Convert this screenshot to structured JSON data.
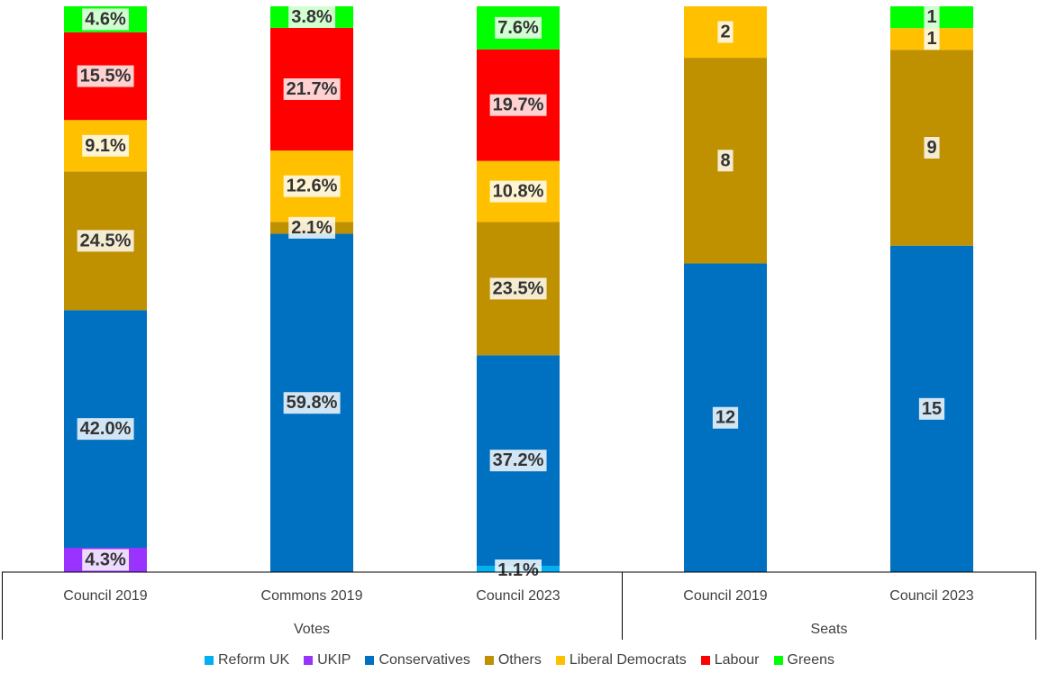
{
  "chart_data": {
    "type": "bar",
    "stacked": true,
    "normalized": true,
    "groups": [
      {
        "label": "Votes",
        "categories": [
          "Council 2019",
          "Commons 2019",
          "Council 2023"
        ]
      },
      {
        "label": "Seats",
        "categories": [
          "Council 2019",
          "Council 2023"
        ]
      }
    ],
    "categories": [
      "Council 2019",
      "Commons 2019",
      "Council 2023",
      "Council 2019",
      "Council 2023"
    ],
    "series": [
      {
        "name": "Reform UK",
        "color": "#00B0F0",
        "values": [
          0,
          0,
          1.1,
          0,
          0
        ],
        "labels": [
          "",
          "",
          "1.1%",
          "",
          ""
        ]
      },
      {
        "name": "UKIP",
        "color": "#9933FF",
        "values": [
          4.3,
          0,
          0,
          0,
          0
        ],
        "labels": [
          "4.3%",
          "",
          "",
          "",
          ""
        ]
      },
      {
        "name": "Conservatives",
        "color": "#0070C0",
        "values": [
          42.0,
          59.8,
          37.2,
          12,
          15
        ],
        "labels": [
          "42.0%",
          "59.8%",
          "37.2%",
          "12",
          "15"
        ]
      },
      {
        "name": "Others",
        "color": "#BF9000",
        "values": [
          24.5,
          2.1,
          23.5,
          8,
          9
        ],
        "labels": [
          "24.5%",
          "2.1%",
          "23.5%",
          "8",
          "9"
        ]
      },
      {
        "name": "Liberal Democrats",
        "color": "#FFC000",
        "values": [
          9.1,
          12.6,
          10.8,
          2,
          1
        ],
        "labels": [
          "9.1%",
          "12.6%",
          "10.8%",
          "2",
          "1"
        ]
      },
      {
        "name": "Labour",
        "color": "#FF0000",
        "values": [
          15.5,
          21.7,
          19.7,
          0,
          0
        ],
        "labels": [
          "15.5%",
          "21.7%",
          "19.7%",
          "",
          ""
        ]
      },
      {
        "name": "Greens",
        "color": "#00FF00",
        "values": [
          4.6,
          3.8,
          7.6,
          0,
          1
        ],
        "labels": [
          "4.6%",
          "3.8%",
          "7.6%",
          "",
          "1"
        ]
      }
    ],
    "legend_position": "bottom",
    "title": "",
    "xlabel": "",
    "ylabel": ""
  }
}
